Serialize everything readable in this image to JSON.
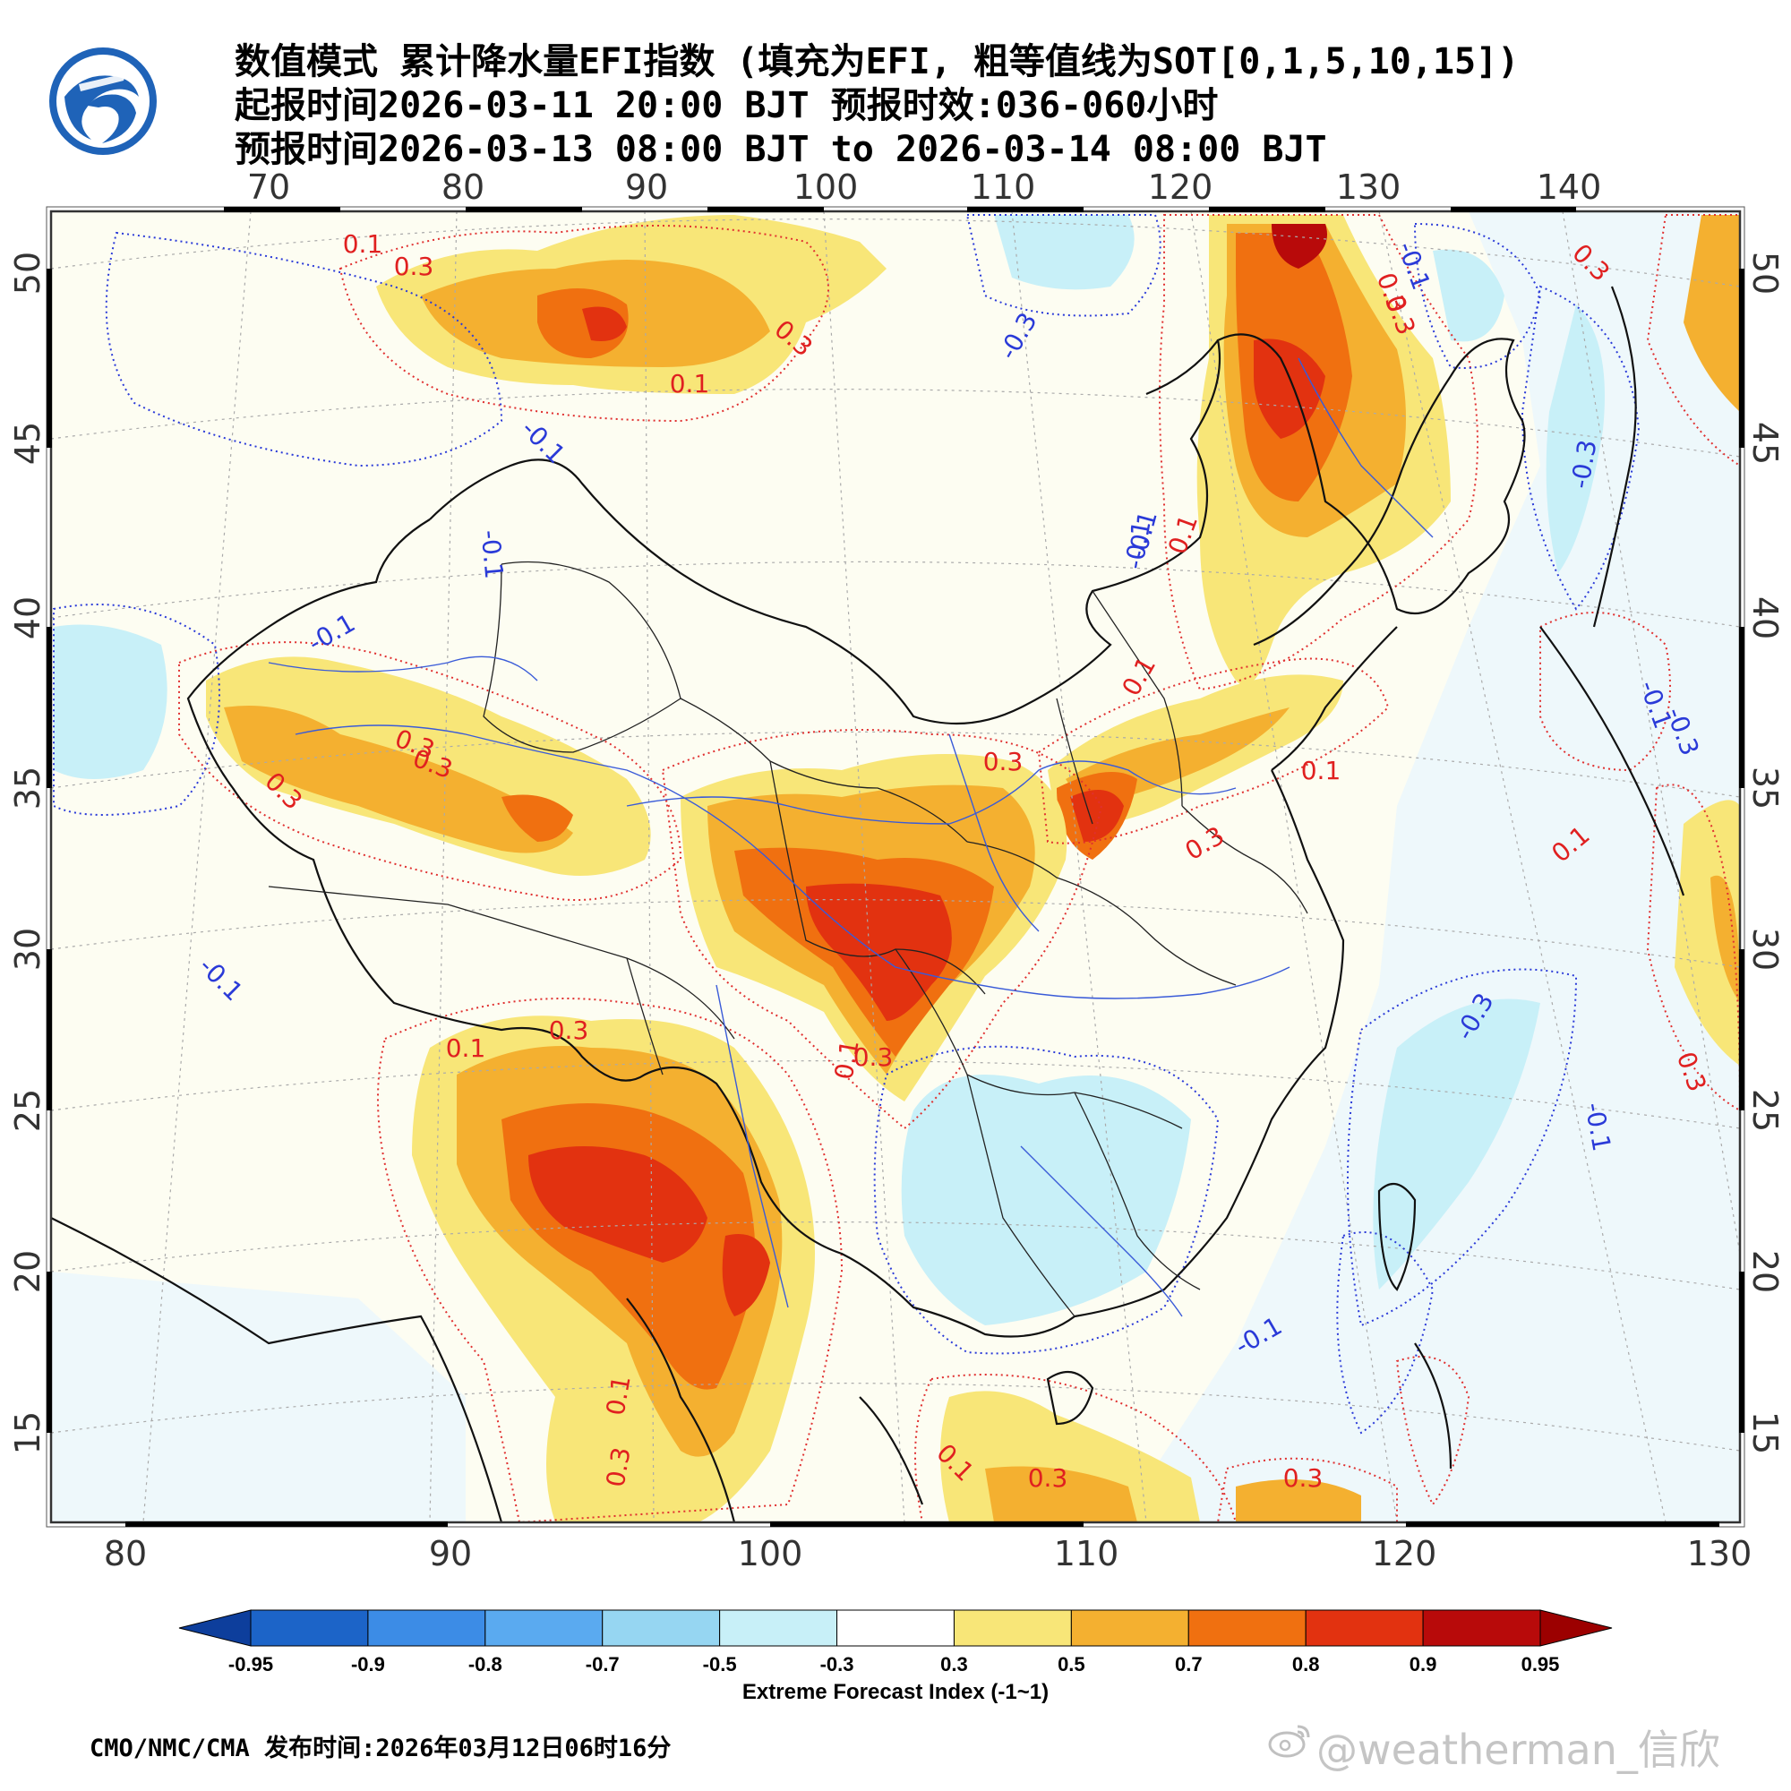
{
  "title": {
    "line1": "数值模式 累计降水量EFI指数 (填充为EFI, 粗等值线为SOT[0,1,5,10,15])",
    "line2": "起报时间2026-03-11 20:00 BJT 预报时效:036-060小时",
    "line3": "预报时间2026-03-13 08:00 BJT to 2026-03-14 08:00 BJT"
  },
  "logo": {
    "icon": "cma-logo-icon",
    "color": "#1a5fb0"
  },
  "axes": {
    "top_lon": [
      "70",
      "80",
      "90",
      "100",
      "110",
      "120",
      "130",
      "140"
    ],
    "bottom_lon": [
      "80",
      "90",
      "100",
      "110",
      "120",
      "130"
    ],
    "left_lat": [
      "50",
      "45",
      "40",
      "35",
      "30",
      "25",
      "20",
      "15"
    ],
    "right_lat": [
      "50",
      "45",
      "40",
      "35",
      "30",
      "25",
      "20",
      "15"
    ]
  },
  "contour_labels": {
    "red": [
      "0.1",
      "0.3",
      "0.3",
      "0.3",
      "0.1",
      "0.3",
      "0.3",
      "0.3",
      "0.1",
      "0.1",
      "0.3",
      "0.1",
      "0.3",
      "0.1",
      "0.3",
      "0.1",
      "0.3",
      "0.3",
      "0.1",
      "0.3",
      "0.3",
      "0.1",
      "0.3",
      "0.1",
      "0.3",
      "0.3"
    ],
    "blue": [
      "-0.3",
      "-0.1",
      "-0.1",
      "-0.1",
      "-0.3",
      "-0.1",
      "-0.1",
      "-0.1",
      "-0.3",
      "-0.1",
      "-0.1",
      "-0.1",
      "-0.3",
      "-0.1"
    ]
  },
  "colorbar": {
    "labels": [
      "-0.95",
      "-0.9",
      "-0.8",
      "-0.7",
      "-0.5",
      "-0.3",
      "0.3",
      "0.5",
      "0.7",
      "0.8",
      "0.9",
      "0.95"
    ],
    "colors": [
      "#0d3e9c",
      "#1c64c8",
      "#3c8ce6",
      "#5aaaf0",
      "#96d6f2",
      "#c8f0f8",
      "#ffffff",
      "#f8e678",
      "#f4b030",
      "#f07010",
      "#e23210",
      "#b80a0a",
      "#9c0000"
    ],
    "title": "Extreme Forecast Index (-1~1)"
  },
  "footer": "CMO/NMC/CMA 发布时间:2026年03月12日06时16分",
  "watermark": "@weatherman_信欣"
}
